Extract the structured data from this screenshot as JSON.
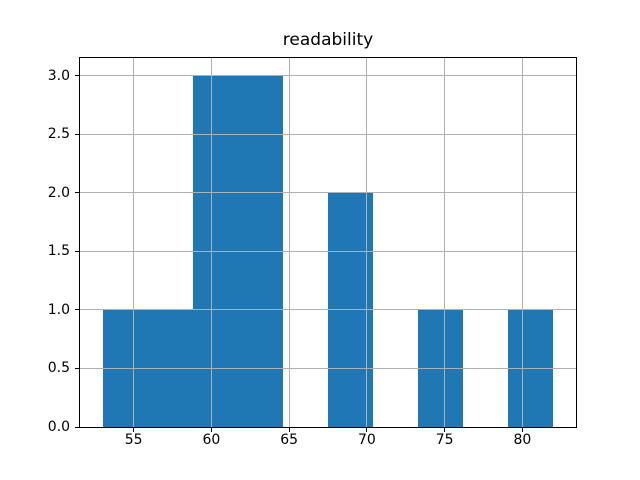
{
  "chart_data": {
    "type": "histogram",
    "title": "readability",
    "xlabel": "",
    "ylabel": "",
    "bin_edges": [
      53.0,
      55.9,
      58.8,
      61.7,
      64.6,
      67.5,
      70.4,
      73.3,
      76.2,
      79.1,
      82.0
    ],
    "counts": [
      1,
      1,
      3,
      3,
      0,
      2,
      0,
      1,
      0,
      1
    ],
    "xticks": [
      55,
      60,
      65,
      70,
      75,
      80
    ],
    "xtick_labels": [
      "55",
      "60",
      "65",
      "70",
      "75",
      "80"
    ],
    "yticks": [
      0.0,
      0.5,
      1.0,
      1.5,
      2.0,
      2.5,
      3.0
    ],
    "ytick_labels": [
      "0.0",
      "0.5",
      "1.0",
      "1.5",
      "2.0",
      "2.5",
      "3.0"
    ],
    "xlim": [
      51.55,
      83.45
    ],
    "ylim": [
      0,
      3.15
    ],
    "grid": true,
    "grid_above_bars": true,
    "legend": false,
    "bar_color": "#1f77b4",
    "grid_color": "#b0b0b0",
    "axis_color": "#000000",
    "text_color": "#000000",
    "background_color": "#ffffff"
  }
}
